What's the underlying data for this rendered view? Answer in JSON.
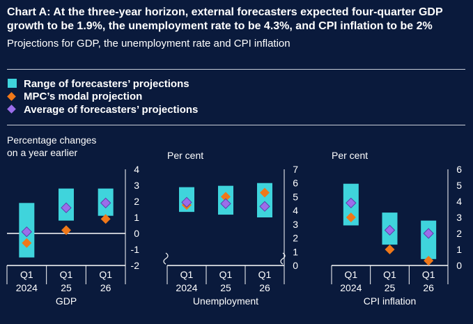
{
  "header": {
    "title": "Chart A: At the three-year horizon, external forecasters expected four-quarter GDP growth to be 1.9%, the unemployment rate to be 4.3%, and CPI inflation to be 2%",
    "subtitle": "Projections for GDP, the unemployment rate and CPI inflation"
  },
  "legend": {
    "items": [
      {
        "label": "Range of forecasters’ projections",
        "marker": "square",
        "color": "#3fd4dc"
      },
      {
        "label": "MPC’s modal projection",
        "marker": "diamond",
        "color": "#f07819"
      },
      {
        "label": "Average of forecasters’ projections",
        "marker": "diamond",
        "color": "#9b6dea"
      }
    ]
  },
  "colors": {
    "background": "#0a1a3c",
    "range": "#3fd4dc",
    "mpc": "#f07819",
    "average": "#9b6dea",
    "text": "#ffffff",
    "rule": "#c9ced8"
  },
  "chart_data": [
    {
      "type": "range-dot",
      "name": "GDP",
      "unit_label": [
        "Percentage changes",
        "on a year earlier"
      ],
      "categories": [
        [
          "Q1",
          "2024"
        ],
        [
          "Q1",
          "25"
        ],
        [
          "Q1",
          "26"
        ]
      ],
      "ylim": [
        -2,
        4
      ],
      "yticks": [
        -2,
        -1,
        0,
        1,
        2,
        3,
        4
      ],
      "zero_line": 0,
      "axis_break": false,
      "range_low": [
        -1.5,
        0.8,
        1.1
      ],
      "range_high": [
        1.9,
        2.8,
        2.8
      ],
      "mpc": [
        -0.6,
        0.2,
        0.9
      ],
      "average": [
        0.1,
        1.6,
        1.9
      ],
      "xlabel": "GDP"
    },
    {
      "type": "range-dot",
      "name": "Unemployment",
      "unit_label": [
        "Per cent"
      ],
      "categories": [
        [
          "Q1",
          "2024"
        ],
        [
          "Q1",
          "25"
        ],
        [
          "Q1",
          "26"
        ]
      ],
      "ylim": [
        0,
        7
      ],
      "yticks": [
        0,
        1,
        2,
        3,
        4,
        5,
        6,
        7
      ],
      "zero_line": null,
      "axis_break": true,
      "range_low": [
        3.9,
        3.7,
        3.5
      ],
      "range_high": [
        5.7,
        5.8,
        6.0
      ],
      "mpc": [
        4.4,
        5.0,
        5.3
      ],
      "average": [
        4.6,
        4.5,
        4.3
      ],
      "xlabel": "Unemployment"
    },
    {
      "type": "range-dot",
      "name": "CPI inflation",
      "unit_label": [
        "Per cent"
      ],
      "categories": [
        [
          "Q1",
          "2024"
        ],
        [
          "Q1",
          "25"
        ],
        [
          "Q1",
          "26"
        ]
      ],
      "ylim": [
        0,
        6
      ],
      "yticks": [
        0,
        1,
        2,
        3,
        4,
        5,
        6
      ],
      "zero_line": null,
      "axis_break": false,
      "range_low": [
        2.5,
        1.3,
        0.4
      ],
      "range_high": [
        5.1,
        3.3,
        2.8
      ],
      "mpc": [
        3.0,
        1.0,
        0.3
      ],
      "average": [
        3.9,
        2.2,
        2.0
      ],
      "xlabel": "CPI inflation"
    }
  ]
}
